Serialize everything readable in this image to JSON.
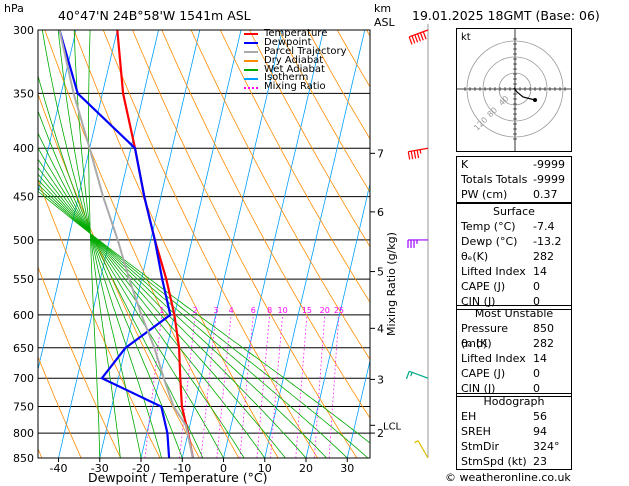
{
  "header": {
    "location": "40°47'N  24B°58'W  1541m  ASL",
    "datetime": "19.01.2025  18GMT  (Base: 06)"
  },
  "axes": {
    "pressure_unit": "hPa",
    "height_unit": "km\nASL",
    "x_label": "Dewpoint / Temperature (°C)",
    "mixing_label": "Mixing Ratio (g/kg)"
  },
  "legend": [
    {
      "label": "Temperature",
      "color": "#ff0000"
    },
    {
      "label": "Dewpoint",
      "color": "#0000ff"
    },
    {
      "label": "Parcel Trajectory",
      "color": "#aaaaaa"
    },
    {
      "label": "Dry Adiabat",
      "color": "#ff8c00"
    },
    {
      "label": "Wet Adiabat",
      "color": "#00aa00"
    },
    {
      "label": "Isotherm",
      "color": "#00a0ff"
    },
    {
      "label": "Mixing Ratio",
      "color": "#ff00ff"
    }
  ],
  "chart_data": {
    "type": "line",
    "title": "",
    "xlabel": "Dewpoint / Temperature (°C)",
    "ylabel": "hPa",
    "xlim": [
      -45,
      35
    ],
    "ylim": [
      850,
      300
    ],
    "pressure_ticks": [
      300,
      350,
      400,
      450,
      500,
      550,
      600,
      650,
      700,
      750,
      800,
      850
    ],
    "temperature_ticks": [
      -40,
      -30,
      -20,
      -10,
      0,
      10,
      20,
      30
    ],
    "height_ticks_km": [
      {
        "label": "7",
        "p": 405
      },
      {
        "label": "6",
        "p": 467
      },
      {
        "label": "5",
        "p": 540
      },
      {
        "label": "4",
        "p": 620
      },
      {
        "label": "3",
        "p": 702
      },
      {
        "label": "2",
        "p": 800
      }
    ],
    "lcl_label": "LCL",
    "lcl_p": 785,
    "mixing_ratio_labels": [
      "1",
      "2",
      "3",
      "4",
      "6",
      "8",
      "10",
      "15",
      "20",
      "25"
    ],
    "mixing_ratio_values": [
      1,
      2,
      3,
      4,
      6,
      8,
      10,
      15,
      20,
      25
    ],
    "mixing_label_p": 600,
    "series": [
      {
        "name": "Temperature",
        "color": "#ff0000",
        "p": [
          850,
          800,
          750,
          700,
          650,
          600,
          550,
          500,
          450,
          400,
          350,
          300
        ],
        "t": [
          -7.4,
          -10,
          -13,
          -15,
          -17,
          -20,
          -24,
          -29,
          -34,
          -39,
          -45,
          -50
        ]
      },
      {
        "name": "Dewpoint",
        "color": "#0000ff",
        "p": [
          850,
          800,
          750,
          700,
          650,
          600,
          550,
          500,
          450,
          400,
          350,
          300
        ],
        "t": [
          -13.2,
          -15,
          -18,
          -34,
          -30,
          -21,
          -25,
          -29,
          -34,
          -39,
          -56,
          -64
        ]
      },
      {
        "name": "Parcel Trajectory",
        "color": "#aaaaaa",
        "p": [
          850,
          785,
          750,
          700,
          650,
          600,
          550,
          500,
          450,
          400,
          350,
          300
        ],
        "t": [
          -7.4,
          -11,
          -15,
          -19,
          -23,
          -28,
          -33,
          -38,
          -44,
          -50,
          -57,
          -64
        ]
      }
    ]
  },
  "hodograph": {
    "unit": "kt",
    "ring_labels": [
      "40",
      "80",
      "120"
    ],
    "points": [
      [
        0,
        0
      ],
      [
        -1,
        1
      ],
      [
        2,
        -3
      ],
      [
        8,
        -8
      ],
      [
        16,
        -10
      ],
      [
        20,
        -11
      ]
    ]
  },
  "winds": [
    {
      "p": 300,
      "color": "#ff0000",
      "dir": 250,
      "kt": 60
    },
    {
      "p": 400,
      "color": "#ff0000",
      "dir": 260,
      "kt": 45
    },
    {
      "p": 500,
      "color": "#9900ff",
      "dir": 270,
      "kt": 35
    },
    {
      "p": 700,
      "color": "#00aa88",
      "dir": 290,
      "kt": 15
    },
    {
      "p": 850,
      "color": "#ddbb00",
      "dir": 330,
      "kt": 5
    }
  ],
  "indices": [
    {
      "label": "K",
      "value": "-9999"
    },
    {
      "label": "Totals Totals",
      "value": "-9999"
    },
    {
      "label": "PW (cm)",
      "value": "0.37"
    }
  ],
  "surface": {
    "title": "Surface",
    "rows": [
      {
        "label": "Temp (°C)",
        "value": "-7.4"
      },
      {
        "label": "Dewp (°C)",
        "value": "-13.2"
      },
      {
        "label": "θₑ(K)",
        "value": "282"
      },
      {
        "label": "Lifted Index",
        "value": "14"
      },
      {
        "label": "CAPE (J)",
        "value": "0"
      },
      {
        "label": "CIN (J)",
        "value": "0"
      }
    ]
  },
  "most_unstable": {
    "title": "Most Unstable",
    "rows": [
      {
        "label": "Pressure (mb)",
        "value": "850"
      },
      {
        "label": "θₑ (K)",
        "value": "282"
      },
      {
        "label": "Lifted Index",
        "value": "14"
      },
      {
        "label": "CAPE (J)",
        "value": "0"
      },
      {
        "label": "CIN (J)",
        "value": "0"
      }
    ]
  },
  "hodograph_table": {
    "title": "Hodograph",
    "rows": [
      {
        "label": "EH",
        "value": "56"
      },
      {
        "label": "SREH",
        "value": "94"
      },
      {
        "label": "StmDir",
        "value": "324°"
      },
      {
        "label": "StmSpd (kt)",
        "value": "23"
      }
    ]
  },
  "copyright": "© weatheronline.co.uk"
}
